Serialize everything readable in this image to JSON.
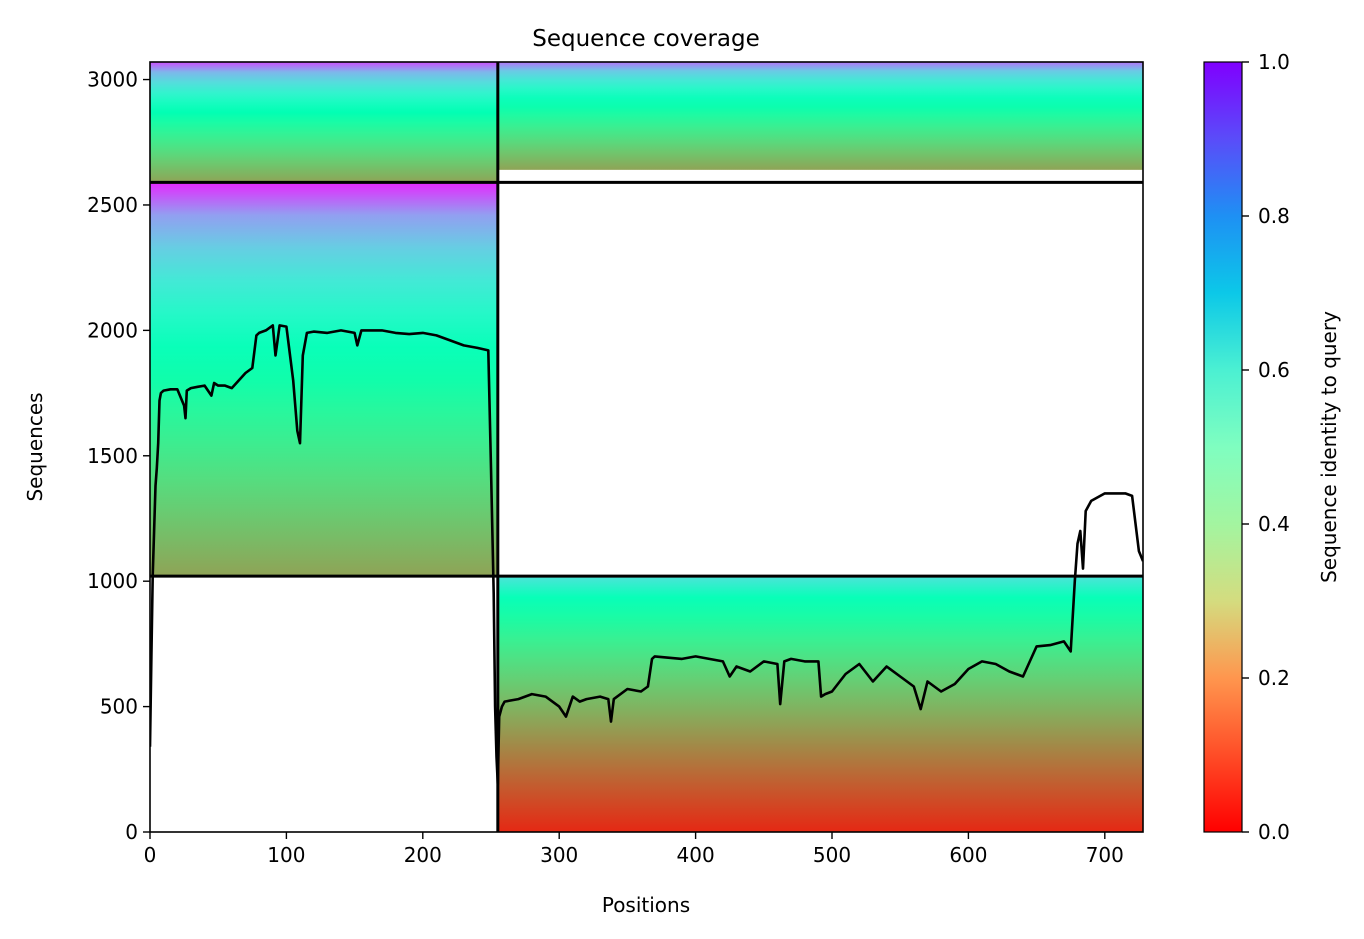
{
  "chart_data": {
    "type": "heatmap",
    "title": "Sequence coverage",
    "xlabel": "Positions",
    "ylabel": "Sequences",
    "xlim": [
      0,
      728
    ],
    "ylim": [
      0,
      3070
    ],
    "xticks": [
      0,
      100,
      200,
      300,
      400,
      500,
      600,
      700
    ],
    "yticks": [
      0,
      500,
      1000,
      1500,
      2000,
      2500,
      3000
    ],
    "colorbar": {
      "label": "Sequence identity to query",
      "range": [
        0.0,
        1.0
      ],
      "ticks": [
        "0.0",
        "0.2",
        "0.4",
        "0.6",
        "0.8",
        "1.0"
      ],
      "colormap": "rainbow_r"
    },
    "domain_boundaries": {
      "x": [
        255
      ],
      "y": [
        1020,
        2590
      ]
    },
    "blocks": [
      {
        "name": "top-left",
        "x": [
          0,
          255
        ],
        "y": [
          2590,
          3070
        ],
        "identity_range": [
          0.22,
          0.9
        ]
      },
      {
        "name": "top-right",
        "x": [
          255,
          728
        ],
        "y": [
          2640,
          3070
        ],
        "identity_range": [
          0.22,
          0.85
        ]
      },
      {
        "name": "middle-left",
        "x": [
          0,
          255
        ],
        "y": [
          1020,
          2590
        ],
        "identity_range": [
          0.22,
          0.95
        ]
      },
      {
        "name": "bottom-right",
        "x": [
          255,
          728
        ],
        "y": [
          0,
          1020
        ],
        "identity_range": [
          0.05,
          0.65
        ]
      }
    ],
    "coverage_line": {
      "name": "coverage",
      "x": [
        0,
        1,
        2,
        3,
        4,
        5,
        6,
        7,
        8,
        10,
        15,
        20,
        25,
        26,
        27,
        30,
        35,
        40,
        45,
        47,
        50,
        55,
        60,
        65,
        70,
        75,
        78,
        80,
        85,
        90,
        92,
        95,
        100,
        105,
        108,
        110,
        112,
        115,
        120,
        130,
        140,
        150,
        152,
        155,
        160,
        170,
        180,
        190,
        200,
        210,
        220,
        230,
        240,
        248,
        250,
        252,
        253,
        254,
        255,
        256,
        258,
        260,
        270,
        280,
        290,
        300,
        305,
        310,
        315,
        320,
        330,
        336,
        338,
        340,
        350,
        360,
        365,
        368,
        370,
        380,
        390,
        400,
        410,
        420,
        425,
        430,
        440,
        450,
        460,
        462,
        465,
        470,
        480,
        490,
        492,
        495,
        500,
        510,
        520,
        530,
        540,
        550,
        560,
        565,
        570,
        580,
        590,
        600,
        610,
        620,
        630,
        640,
        650,
        660,
        670,
        675,
        678,
        680,
        682,
        684,
        686,
        690,
        700,
        710,
        715,
        720,
        725,
        728
      ],
      "y": [
        340,
        700,
        1020,
        1200,
        1380,
        1450,
        1550,
        1720,
        1750,
        1760,
        1765,
        1765,
        1700,
        1650,
        1760,
        1770,
        1775,
        1780,
        1740,
        1790,
        1780,
        1780,
        1770,
        1800,
        1830,
        1850,
        1980,
        1990,
        2000,
        2020,
        1900,
        2020,
        2015,
        1800,
        1600,
        1550,
        1900,
        1990,
        1995,
        1990,
        2000,
        1990,
        1940,
        2000,
        2000,
        2000,
        1990,
        1985,
        1990,
        1980,
        1960,
        1940,
        1930,
        1920,
        1450,
        950,
        500,
        300,
        190,
        460,
        500,
        520,
        530,
        550,
        540,
        500,
        460,
        540,
        520,
        530,
        540,
        530,
        440,
        530,
        570,
        560,
        580,
        690,
        700,
        695,
        690,
        700,
        690,
        680,
        620,
        660,
        640,
        680,
        670,
        510,
        680,
        690,
        680,
        680,
        540,
        550,
        560,
        630,
        670,
        600,
        660,
        620,
        580,
        490,
        600,
        560,
        590,
        650,
        680,
        670,
        640,
        620,
        740,
        745,
        760,
        720,
        1000,
        1150,
        1200,
        1050,
        1280,
        1320,
        1350,
        1350,
        1350,
        1340,
        1120,
        1080
      ]
    }
  }
}
